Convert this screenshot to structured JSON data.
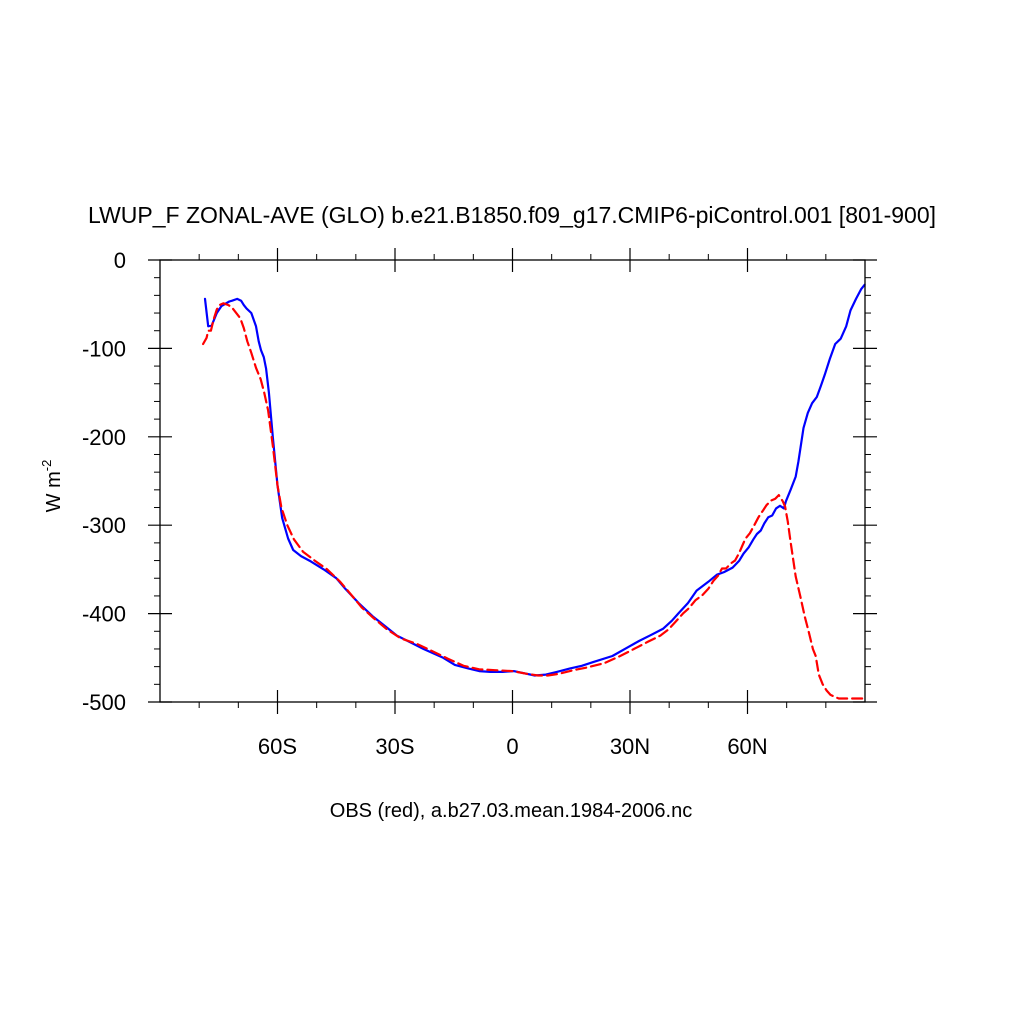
{
  "chart_data": {
    "type": "line",
    "title": "LWUP_F ZONAL-AVE (GLO) b.e21.B1850.f09_g17.CMIP6-piControl.001 [801-900]",
    "ylabel_main": "W m",
    "ylabel_sup": "-2",
    "xlabel": "OBS (red), a.b27.03.mean.1984-2006.nc",
    "xlim": [
      -90,
      90
    ],
    "ylim": [
      -500,
      0
    ],
    "grid": false,
    "x_ticks": [
      {
        "value": -60,
        "label": "60S"
      },
      {
        "value": -30,
        "label": "30S"
      },
      {
        "value": 0,
        "label": "0"
      },
      {
        "value": 30,
        "label": "30N"
      },
      {
        "value": 60,
        "label": "60N"
      }
    ],
    "y_ticks": [
      {
        "value": 0,
        "label": "0"
      },
      {
        "value": -100,
        "label": "-100"
      },
      {
        "value": -200,
        "label": "-200"
      },
      {
        "value": -300,
        "label": "-300"
      },
      {
        "value": -400,
        "label": "-400"
      },
      {
        "value": -500,
        "label": "-500"
      }
    ],
    "series": [
      {
        "color": "#0000ff",
        "dash": "none",
        "x": [
          -78.5,
          -77.7,
          -76.8,
          -75.5,
          -74.3,
          -72.3,
          -71.6,
          -70.3,
          -69.3,
          -68.6,
          -67.9,
          -66.7,
          -65.5,
          -64.8,
          -64.2,
          -63.5,
          -62.9,
          -62.2,
          -61.2,
          -60.0,
          -58.8,
          -57.3,
          -56.0,
          -54.0,
          -51.5,
          -48.2,
          -45.0,
          -42.7,
          -39.3,
          -35.7,
          -32.3,
          -29.5,
          -26.3,
          -22.7,
          -17.7,
          -14.7,
          -11.3,
          -8.5,
          -5.7,
          -2.5,
          0.3,
          3.5,
          5.7,
          8.5,
          11.3,
          14.7,
          17.7,
          20.5,
          25.5,
          29.5,
          32.3,
          35.0,
          38.5,
          40.7,
          42.3,
          44.8,
          47.0,
          50.0,
          52.2,
          54.0,
          56.2,
          57.9,
          59.0,
          60.3,
          61.5,
          62.4,
          63.4,
          64.3,
          65.3,
          66.3,
          67.3,
          68.3,
          69.3,
          69.8,
          71.0,
          72.3,
          73.0,
          74.3,
          75.4,
          76.5,
          77.7,
          78.7,
          79.7,
          81.0,
          82.4,
          83.8,
          85.2,
          86.3,
          87.7,
          89.0,
          89.9
        ],
        "y": [
          -44,
          -75,
          -74,
          -60,
          -52,
          -47,
          -46,
          -44,
          -46,
          -51,
          -55,
          -60,
          -75,
          -92,
          -102,
          -110,
          -123,
          -150,
          -200,
          -255,
          -292,
          -315,
          -328,
          -335,
          -341,
          -350,
          -360,
          -372,
          -388,
          -403,
          -415,
          -425,
          -432,
          -440,
          -450,
          -458,
          -462,
          -465,
          -466,
          -466,
          -465,
          -468,
          -470,
          -469,
          -466,
          -462,
          -459,
          -455,
          -448,
          -438,
          -431,
          -425,
          -417,
          -408,
          -400,
          -388,
          -374,
          -364,
          -356,
          -353,
          -348,
          -340,
          -332,
          -325,
          -316,
          -310,
          -306,
          -298,
          -291,
          -289,
          -281,
          -278,
          -281,
          -273,
          -260,
          -245,
          -228,
          -190,
          -173,
          -162,
          -155,
          -143,
          -130,
          -112,
          -95,
          -89,
          -75,
          -57,
          -44,
          -33,
          -28
        ]
      },
      {
        "color": "#ff0000",
        "dash": "10 5",
        "x": [
          -79.0,
          -78.1,
          -77.7,
          -77.0,
          -76.3,
          -75.5,
          -74.8,
          -73.8,
          -72.5,
          -71.6,
          -70.7,
          -69.5,
          -68.6,
          -67.7,
          -66.7,
          -65.5,
          -64.3,
          -63.4,
          -62.4,
          -61.2,
          -60.0,
          -59.0,
          -57.5,
          -55.8,
          -53.5,
          -50.5,
          -47.3,
          -44.0,
          -41.5,
          -38.5,
          -35.5,
          -32.0,
          -28.5,
          -24.5,
          -20.7,
          -16.5,
          -12.5,
          -8.5,
          -4.5,
          0.0,
          3.5,
          6.5,
          9.0,
          12.0,
          15.5,
          19.0,
          23.5,
          27.5,
          31.0,
          34.5,
          37.7,
          39.8,
          41.5,
          43.5,
          45.0,
          46.7,
          48.5,
          50.0,
          51.3,
          52.5,
          53.5,
          54.5,
          55.8,
          56.8,
          57.8,
          58.7,
          59.5,
          60.6,
          61.6,
          62.8,
          64.0,
          64.9,
          66.1,
          67.1,
          68.0,
          69.0,
          69.6,
          70.3,
          71.0,
          72.3,
          73.5,
          74.6,
          75.6,
          76.7,
          77.4,
          78.2,
          79.2,
          80.2,
          81.2,
          82.2,
          83.3,
          84.8,
          86.0,
          87.3,
          88.5,
          89.9
        ],
        "y": [
          -95,
          -88,
          -80,
          -80,
          -67,
          -56,
          -51,
          -49,
          -51,
          -54,
          -59,
          -66,
          -77,
          -92,
          -105,
          -122,
          -135,
          -150,
          -170,
          -210,
          -255,
          -280,
          -300,
          -316,
          -330,
          -340,
          -350,
          -364,
          -377,
          -393,
          -405,
          -418,
          -428,
          -434,
          -442,
          -451,
          -459,
          -463,
          -464,
          -465,
          -468,
          -470,
          -470,
          -468,
          -464,
          -461,
          -456,
          -448,
          -440,
          -432,
          -425,
          -418,
          -410,
          -400,
          -394,
          -385,
          -379,
          -372,
          -363,
          -357,
          -349,
          -349,
          -343,
          -340,
          -332,
          -323,
          -315,
          -309,
          -301,
          -291,
          -283,
          -277,
          -272,
          -270,
          -266,
          -273,
          -279,
          -296,
          -319,
          -358,
          -381,
          -403,
          -420,
          -440,
          -448,
          -469,
          -480,
          -487,
          -492,
          -494,
          -496,
          -496,
          -496,
          -496,
          -496,
          -496
        ]
      }
    ]
  }
}
